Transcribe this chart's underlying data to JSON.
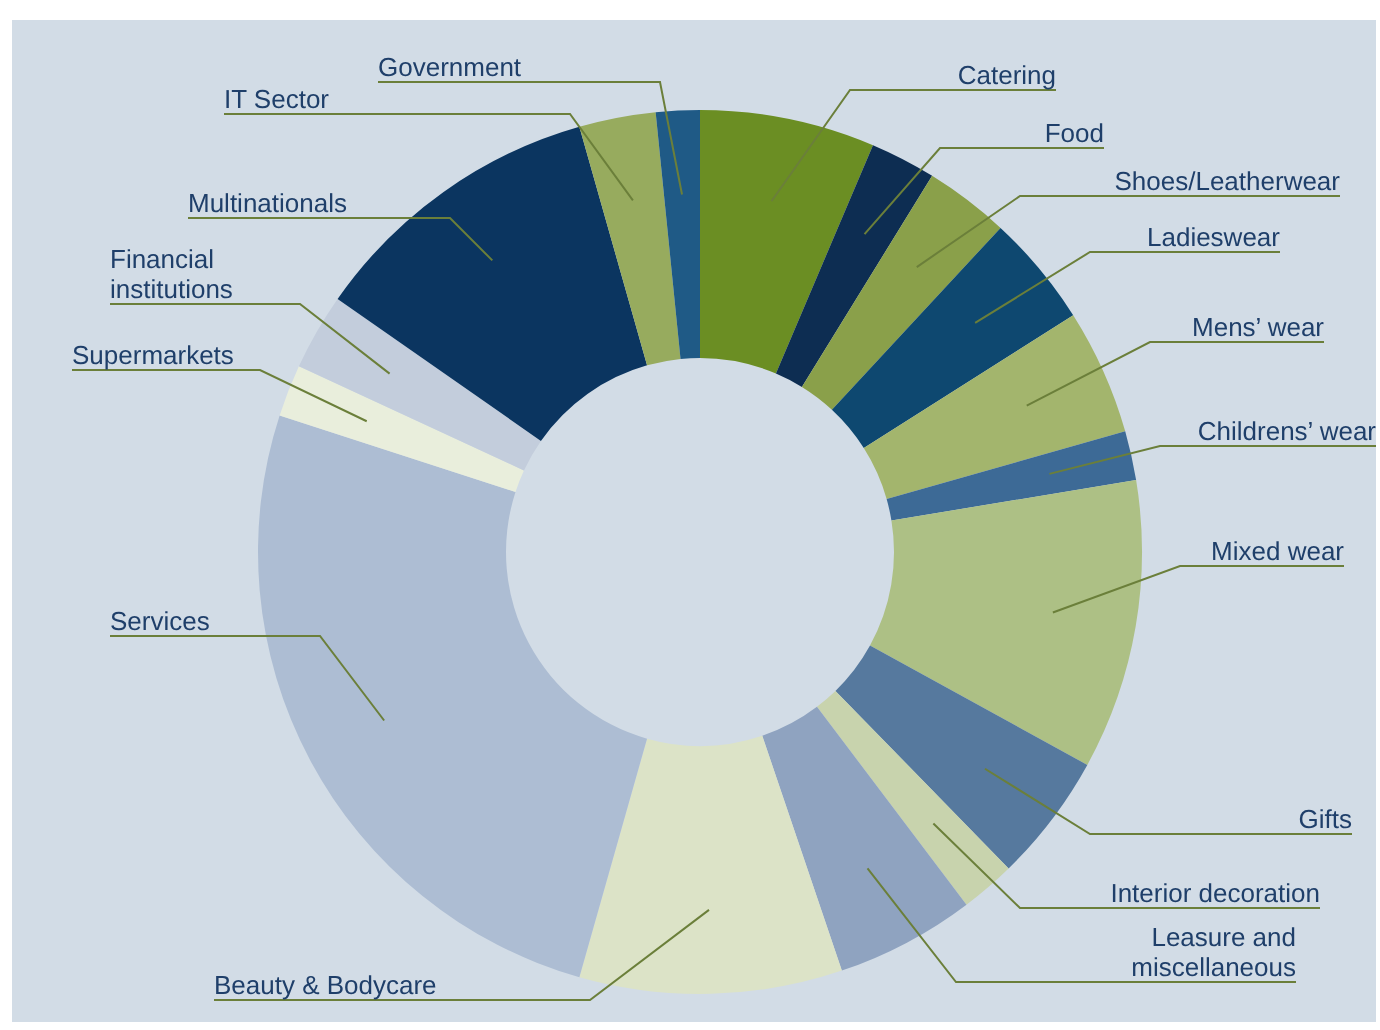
{
  "chart_data": {
    "type": "donut",
    "categories": [
      "Catering",
      "Food",
      "Shoes/Leatherwear",
      "Ladieswear",
      "Mens’ wear",
      "Childrens’ wear",
      "Mixed wear",
      "Gifts",
      "Interior decoration",
      "Leasure and miscellaneous",
      "Beauty & Bodycare",
      "Services",
      "Supermarkets",
      "Financial institutions",
      "Multinationals",
      "IT Sector",
      "Government"
    ],
    "values": [
      6.4,
      2.4,
      3.1,
      4.1,
      4.6,
      1.8,
      10.6,
      4.7,
      2.0,
      5.1,
      9.6,
      25.6,
      1.9,
      2.8,
      10.9,
      2.8,
      1.6
    ],
    "colors": [
      "#6b8e23",
      "#0d2d52",
      "#8aa04a",
      "#0e4870",
      "#a3b56d",
      "#3d6a96",
      "#adc085",
      "#56799e",
      "#c8d3ad",
      "#8fa3c0",
      "#dce3c7",
      "#adbdd3",
      "#e9eedc",
      "#c3cddc",
      "#0b3560",
      "#97ab5e",
      "#1f5a86"
    ]
  }
}
